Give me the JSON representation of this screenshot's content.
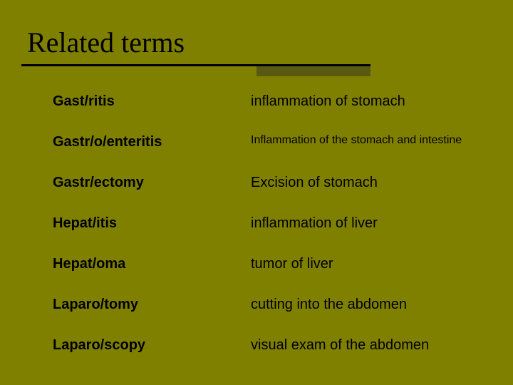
{
  "slide": {
    "title": "Related terms",
    "background_color": "#808000",
    "title_color": "#000000",
    "title_fontsize": 40,
    "title_fontfamily": "Times New Roman",
    "underline_color": "#000000",
    "shadow_color": "#595911",
    "text_color": "#000000",
    "term_fontsize": 20,
    "definition_fontsize": 20,
    "small_definition_fontsize": 16
  },
  "terms": [
    {
      "term": "Gast/ritis",
      "definition": "inflammation of stomach",
      "small": false
    },
    {
      "term": "Gastr/o/enteritis",
      "definition": "Inflammation of the stomach and intestine",
      "small": true
    },
    {
      "term": "Gastr/ectomy",
      "definition": "Excision of stomach",
      "small": false
    },
    {
      "term": "Hepat/itis",
      "definition": "inflammation of liver",
      "small": false
    },
    {
      "term": "Hepat/oma",
      "definition": "tumor of liver",
      "small": false
    },
    {
      "term": "Laparo/tomy",
      "definition": "cutting into the abdomen",
      "small": false
    },
    {
      "term": "Laparo/scopy",
      "definition": "visual exam of the abdomen",
      "small": false
    }
  ]
}
